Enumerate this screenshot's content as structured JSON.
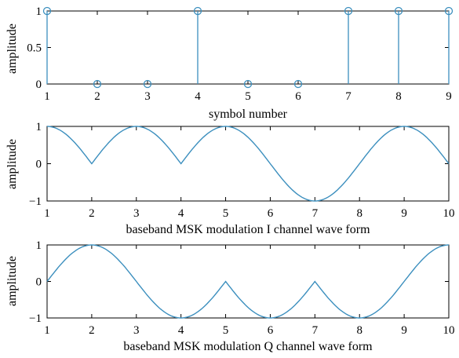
{
  "chart_data": [
    {
      "type": "stem",
      "xlabel": "symbol number",
      "ylabel": "amplitude",
      "xlim": [
        1,
        9
      ],
      "ylim": [
        0,
        1
      ],
      "xticks": [
        "1",
        "2",
        "3",
        "4",
        "5",
        "6",
        "7",
        "8",
        "9"
      ],
      "yticks": [
        "0",
        "0.5",
        "1"
      ],
      "grid": false,
      "color": "#3c8fbe",
      "series": [
        {
          "x": [
            1,
            2,
            3,
            4,
            5,
            6,
            7,
            8,
            9
          ],
          "values": [
            1,
            0,
            0,
            1,
            0,
            0,
            1,
            1,
            1
          ]
        }
      ]
    },
    {
      "type": "line",
      "xlabel": "baseband MSK modulation I channel wave form",
      "ylabel": "amplitude",
      "xlim": [
        1,
        10
      ],
      "ylim": [
        -1,
        1
      ],
      "xticks": [
        "1",
        "2",
        "3",
        "4",
        "5",
        "6",
        "7",
        "8",
        "9",
        "10"
      ],
      "yticks": [
        "−1",
        "0",
        "1"
      ],
      "grid": false,
      "color": "#3c8fbe",
      "series": [
        {
          "x": [
            1,
            1.5,
            2,
            2.5,
            3,
            3.5,
            4,
            4.5,
            5,
            5.5,
            6,
            6.5,
            7,
            7.5,
            8,
            8.5,
            9,
            9.5,
            10
          ],
          "values": [
            1,
            0.71,
            0,
            0.71,
            1,
            0.71,
            0,
            0.71,
            1,
            0.71,
            0,
            -0.71,
            -1,
            -0.71,
            0,
            0.71,
            1,
            0.71,
            0
          ]
        }
      ]
    },
    {
      "type": "line",
      "xlabel": "baseband MSK modulation Q channel wave form",
      "ylabel": "amplitude",
      "xlim": [
        1,
        10
      ],
      "ylim": [
        -1,
        1
      ],
      "xticks": [
        "1",
        "2",
        "3",
        "4",
        "5",
        "6",
        "7",
        "8",
        "9",
        "10"
      ],
      "yticks": [
        "−1",
        "0",
        "1"
      ],
      "grid": false,
      "color": "#3c8fbe",
      "series": [
        {
          "x": [
            1,
            1.5,
            2,
            2.5,
            3,
            3.5,
            4,
            4.5,
            5,
            5.5,
            6,
            6.5,
            7,
            7.5,
            8,
            8.5,
            9,
            9.5,
            10
          ],
          "values": [
            0,
            0.71,
            1,
            0.71,
            0,
            -0.71,
            -1,
            -0.71,
            0,
            -0.71,
            -1,
            -0.71,
            0,
            -0.71,
            -1,
            -0.71,
            0,
            0.71,
            1
          ]
        }
      ]
    }
  ]
}
